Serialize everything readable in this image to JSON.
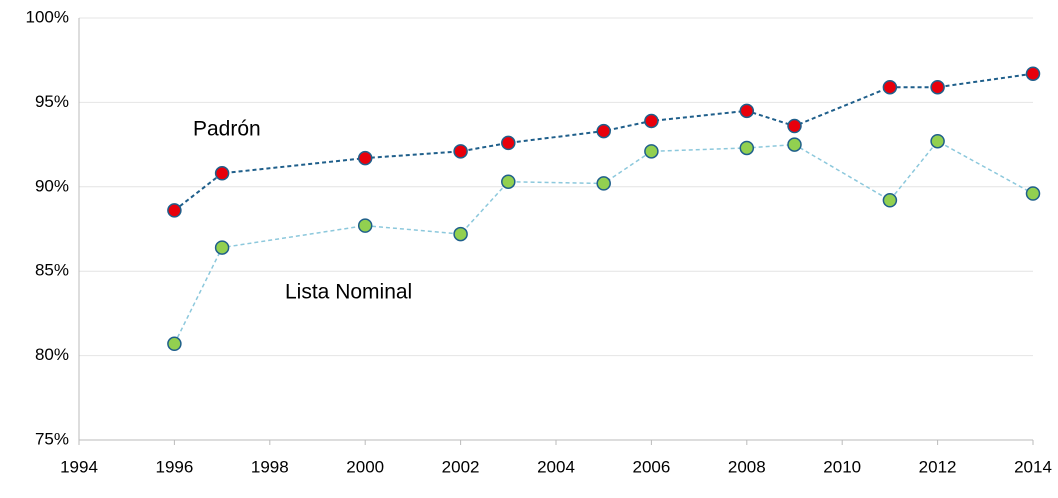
{
  "chart_data": {
    "type": "line",
    "series": [
      {
        "name": "Padrón",
        "color": "#1f5f8b",
        "marker_color": "#e8000b",
        "x": [
          1996,
          1997,
          2000,
          2002,
          2003,
          2005,
          2006,
          2008,
          2009,
          2011,
          2012,
          2014
        ],
        "values": [
          88.6,
          90.8,
          91.7,
          92.1,
          92.6,
          93.3,
          93.9,
          94.5,
          93.6,
          95.9,
          95.9,
          96.7
        ]
      },
      {
        "name": "Lista Nominal",
        "color": "#8cc8dc",
        "marker_color": "#92d050",
        "x": [
          1996,
          1997,
          2000,
          2002,
          2003,
          2005,
          2006,
          2008,
          2009,
          2011,
          2012,
          2014
        ],
        "values": [
          80.7,
          86.4,
          87.7,
          87.2,
          90.3,
          90.2,
          92.1,
          92.3,
          92.5,
          89.2,
          92.7,
          89.6
        ]
      }
    ],
    "xlim": [
      1994,
      2014
    ],
    "xticks": [
      1994,
      1996,
      1998,
      2000,
      2002,
      2004,
      2006,
      2008,
      2010,
      2012,
      2014
    ],
    "ylim": [
      75,
      100
    ],
    "yticks": [
      {
        "value": 75,
        "label": "75%"
      },
      {
        "value": 80,
        "label": "80%"
      },
      {
        "value": 85,
        "label": "85%"
      },
      {
        "value": 90,
        "label": "90%"
      },
      {
        "value": 95,
        "label": "95%"
      },
      {
        "value": 100,
        "label": "100%"
      }
    ],
    "grid": true
  }
}
